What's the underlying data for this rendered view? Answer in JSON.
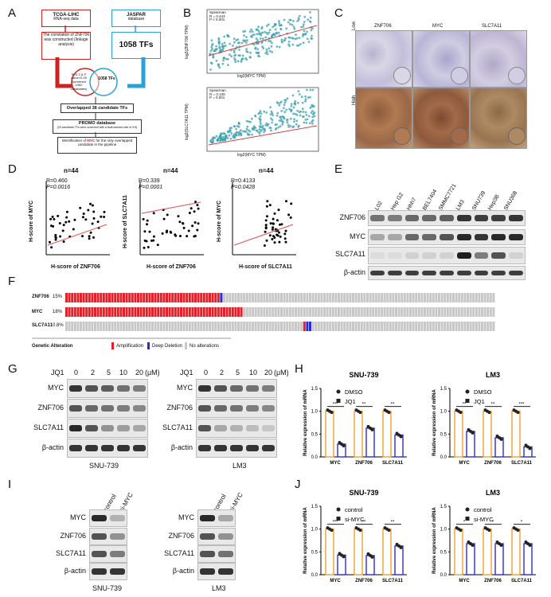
{
  "panels": {
    "A": "A",
    "B": "B",
    "C": "C",
    "D": "D",
    "E": "E",
    "F": "F",
    "G": "G",
    "H": "H",
    "I": "I",
    "J": "J"
  },
  "panelA": {
    "tcga_title": "TCGA-LIHC",
    "tcga_sub": "RNA-seq data",
    "jaspar_title": "JASPAR",
    "jaspar_sub": "database",
    "corr_box": "The correlation of ZNF706 was constructed (linkage analysis)",
    "tfs_box": "1058 TFs",
    "circle_left": "R>0.3 & P value<0.05 (screened 1062 candidates)",
    "circle_right": "1058 TFs",
    "overlap": "Overlapped 38 candidate TFs",
    "promo_title": "PROMO database",
    "promo_sub": "(29 candidate TFs were screened with a fault-tolerant rate of 0%)",
    "ident_pre": "Identification of",
    "ident_hl": "MYC",
    "ident_post": "for the only overlapped candidate in the pipeline"
  },
  "panelB": {
    "top_legend": "Spearman\nR = 0.443\nP < 0.001",
    "top_y": "log2(ZNF706 TPM)",
    "top_x": "log2(MYC TPM)",
    "bot_legend": "Spearman\nR = 0.130\nP = 0.001",
    "bot_y": "log2(SLC7A11 TPM)",
    "bot_x": "log2(MYC TPM)"
  },
  "panelC": {
    "cols": [
      "ZNF706",
      "MYC",
      "SLC7A11"
    ],
    "rows": [
      "Low",
      "High"
    ]
  },
  "panelD": {
    "plots": [
      {
        "n": "n=44",
        "r": "R=0.460",
        "p": "P=0.0016",
        "ylab": "H-score of MYC",
        "xlab": "H-score of ZNF706"
      },
      {
        "n": "n=44",
        "r": "R=0.339",
        "p": "P=0.0001",
        "ylab": "H-score of SLC7A11",
        "xlab": "H-score of ZNF706"
      },
      {
        "n": "n=44",
        "r": "R=0.4133",
        "p": "P=0.0428",
        "ylab": "H-score of MYC",
        "xlab": "H-score of SLC7A11"
      }
    ]
  },
  "panelE": {
    "lanes": [
      "L02",
      "Hep G2",
      "Hhh7",
      "BEL7404",
      "SMMC7721",
      "LM3",
      "SNU739",
      "Hep3B",
      "SNU368"
    ],
    "rows": [
      "ZNF706",
      "MYC",
      "SLC7A11",
      "β-actin"
    ]
  },
  "panelF": {
    "genes": [
      {
        "name": "ZNF706",
        "pct": "15%"
      },
      {
        "name": "MYC",
        "pct": "18%"
      },
      {
        "name": "SLC7A11",
        "pct": "0.8%"
      }
    ],
    "legend_title": "Genetic Alteration",
    "legend": [
      "Amplification",
      "Deep Deletion",
      "No alterations"
    ],
    "colors": {
      "amp": "#e4202a",
      "del": "#2a2ad6",
      "none": "#c8c8c8"
    }
  },
  "panelG": {
    "left": {
      "jq": "JQ1",
      "doses": [
        "0",
        "2",
        "5",
        "10",
        "20"
      ],
      "unit": "(μM)",
      "rows": [
        "MYC",
        "ZNF706",
        "SLC7A11",
        "β-actin"
      ],
      "cell": "SNU-739"
    },
    "right": {
      "jq": "JQ1",
      "doses": [
        "0",
        "2",
        "5",
        "10",
        "20"
      ],
      "unit": "(μM)",
      "rows": [
        "MYC",
        "ZNF706",
        "SLC7A11",
        "β-actin"
      ],
      "cell": "LM3"
    }
  },
  "panelH": {
    "ylabel": "Relative expression of mRNA",
    "legend": [
      "DMSO",
      "JQ1"
    ],
    "charts": [
      {
        "title": "SNU-739",
        "categories": [
          "MYC",
          "ZNF706",
          "SLC7A11"
        ],
        "ctrl": [
          1,
          1,
          1
        ],
        "treat": [
          0.28,
          0.63,
          0.48
        ],
        "sig": [
          "***",
          "**",
          "**"
        ]
      },
      {
        "title": "LM3",
        "categories": [
          "MYC",
          "ZNF706",
          "SLC7A11"
        ],
        "ctrl": [
          1,
          1,
          1
        ],
        "treat": [
          0.56,
          0.42,
          0.22
        ],
        "sig": [
          "**",
          "**",
          "***"
        ]
      }
    ]
  },
  "panelI": {
    "left": {
      "lanes": [
        "control",
        "si-MYC"
      ],
      "rows": [
        "MYC",
        "ZNF706",
        "SLC7A11",
        "β-actin"
      ],
      "cell": "SNU-739"
    },
    "right": {
      "lanes": [
        "control",
        "si-MYC"
      ],
      "rows": [
        "MYC",
        "ZNF706",
        "SLC7A11",
        "β-actin"
      ],
      "cell": "LM3"
    }
  },
  "panelJ": {
    "ylabel": "Relative expression of mRNA",
    "legend": [
      "control",
      "si-MYC"
    ],
    "charts": [
      {
        "title": "SNU-739",
        "categories": [
          "MYC",
          "ZNF706",
          "SLC7A11"
        ],
        "ctrl": [
          1,
          1,
          1
        ],
        "treat": [
          0.43,
          0.42,
          0.63
        ],
        "sig": [
          "***",
          "**",
          "**"
        ]
      },
      {
        "title": "LM3",
        "categories": [
          "MYC",
          "ZNF706",
          "SLC7A11"
        ],
        "ctrl": [
          1,
          1,
          1
        ],
        "treat": [
          0.68,
          0.68,
          0.68
        ],
        "sig": [
          "*",
          "*",
          "*"
        ]
      }
    ]
  },
  "chart_data": [
    {
      "type": "bar",
      "title": "SNU-739",
      "categories": [
        "MYC",
        "ZNF706",
        "SLC7A11"
      ],
      "series": [
        {
          "name": "DMSO",
          "values": [
            1,
            1,
            1
          ]
        },
        {
          "name": "JQ1",
          "values": [
            0.28,
            0.63,
            0.48
          ]
        }
      ],
      "ylabel": "Relative expression of mRNA",
      "ylim": [
        0,
        1.5
      ]
    },
    {
      "type": "bar",
      "title": "LM3",
      "categories": [
        "MYC",
        "ZNF706",
        "SLC7A11"
      ],
      "series": [
        {
          "name": "DMSO",
          "values": [
            1,
            1,
            1
          ]
        },
        {
          "name": "JQ1",
          "values": [
            0.56,
            0.42,
            0.22
          ]
        }
      ],
      "ylabel": "Relative expression of mRNA",
      "ylim": [
        0,
        1.5
      ]
    },
    {
      "type": "bar",
      "title": "SNU-739",
      "categories": [
        "MYC",
        "ZNF706",
        "SLC7A11"
      ],
      "series": [
        {
          "name": "control",
          "values": [
            1,
            1,
            1
          ]
        },
        {
          "name": "si-MYC",
          "values": [
            0.43,
            0.42,
            0.63
          ]
        }
      ],
      "ylabel": "Relative expression of mRNA",
      "ylim": [
        0,
        1.5
      ]
    },
    {
      "type": "bar",
      "title": "LM3",
      "categories": [
        "MYC",
        "ZNF706",
        "SLC7A11"
      ],
      "series": [
        {
          "name": "control",
          "values": [
            1,
            1,
            1
          ]
        },
        {
          "name": "si-MYC",
          "values": [
            0.68,
            0.68,
            0.68
          ]
        }
      ],
      "ylabel": "Relative expression of mRNA",
      "ylim": [
        0,
        1.5
      ]
    }
  ]
}
